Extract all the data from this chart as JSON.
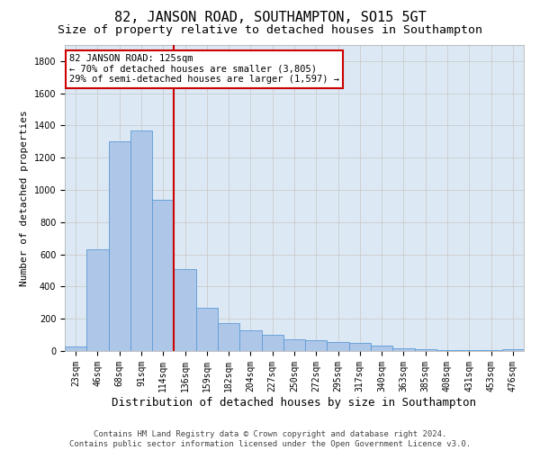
{
  "title1": "82, JANSON ROAD, SOUTHAMPTON, SO15 5GT",
  "title2": "Size of property relative to detached houses in Southampton",
  "xlabel": "Distribution of detached houses by size in Southampton",
  "ylabel": "Number of detached properties",
  "categories": [
    "23sqm",
    "46sqm",
    "68sqm",
    "91sqm",
    "114sqm",
    "136sqm",
    "159sqm",
    "182sqm",
    "204sqm",
    "227sqm",
    "250sqm",
    "272sqm",
    "295sqm",
    "317sqm",
    "340sqm",
    "363sqm",
    "385sqm",
    "408sqm",
    "431sqm",
    "453sqm",
    "476sqm"
  ],
  "values": [
    30,
    630,
    1300,
    1370,
    940,
    510,
    270,
    175,
    130,
    100,
    75,
    65,
    55,
    50,
    35,
    15,
    10,
    7,
    5,
    3,
    10
  ],
  "bar_color": "#aec6e8",
  "bar_edge_color": "#5b9bd5",
  "vline_color": "#cc0000",
  "annotation_text": "82 JANSON ROAD: 125sqm\n← 70% of detached houses are smaller (3,805)\n29% of semi-detached houses are larger (1,597) →",
  "annotation_box_color": "#ffffff",
  "annotation_box_edge": "#cc0000",
  "ylim": [
    0,
    1900
  ],
  "yticks": [
    0,
    200,
    400,
    600,
    800,
    1000,
    1200,
    1400,
    1600,
    1800
  ],
  "grid_color": "#cccccc",
  "bg_color": "#dce9f5",
  "footer1": "Contains HM Land Registry data © Crown copyright and database right 2024.",
  "footer2": "Contains public sector information licensed under the Open Government Licence v3.0.",
  "title1_fontsize": 11,
  "title2_fontsize": 9.5,
  "xlabel_fontsize": 9,
  "ylabel_fontsize": 8,
  "tick_fontsize": 7,
  "footer_fontsize": 6.5,
  "ann_fontsize": 7.5
}
